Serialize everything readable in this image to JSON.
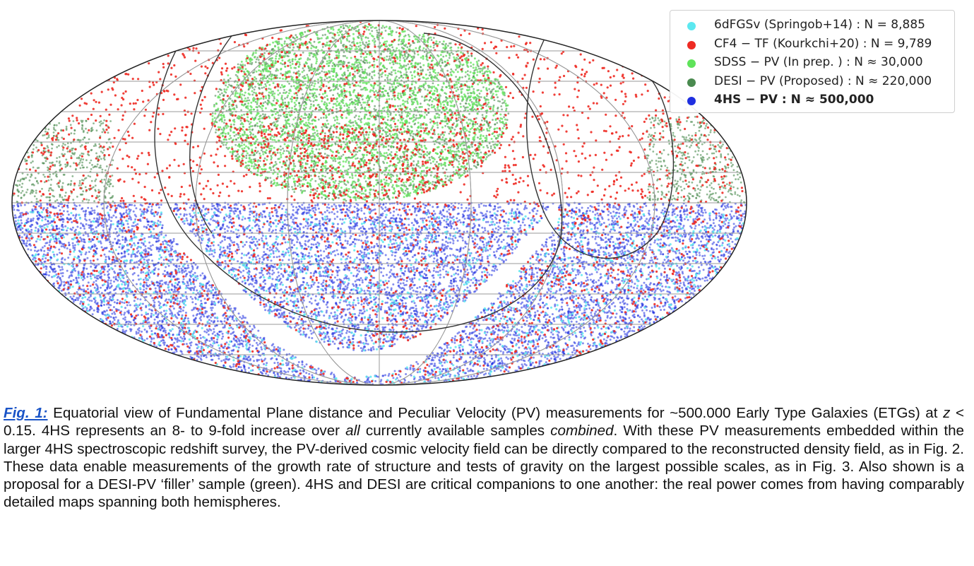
{
  "legend": [
    {
      "label": "6dFGSv (Springob+14) : N = 8,885",
      "color": "#5ce8f0",
      "bold": false
    },
    {
      "label": "CF4 − TF (Kourkchi+20) : N = 9,789",
      "color": "#ee2b23",
      "bold": false
    },
    {
      "label": "SDSS − PV (In prep. ) : N ≈ 30,000",
      "color": "#5fe35a",
      "bold": false
    },
    {
      "label": "DESI − PV (Proposed) : N ≈ 220,000",
      "color": "#4a8a4f",
      "bold": false
    },
    {
      "label": "4HS − PV : N ≈ 500,000",
      "color": "#1f2fe0",
      "bold": true
    }
  ],
  "caption": {
    "label": "Fig. 1:",
    "part1": " Equatorial view of Fundamental Plane distance and Peculiar Velocity (PV) measurements for ~500.000 Early Type Galaxies (ETGs) at ",
    "z": "z",
    "part2": " < 0.15. 4HS represents an 8- to 9-fold increase over ",
    "all": "all",
    "part3": " currently available samples ",
    "combined": "combined",
    "part4": ". With these PV measurements embedded within the larger 4HS spectroscopic redshift survey, the PV-derived cosmic velocity field can be directly compared to the reconstructed density field, as in Fig. 2. These data enable measurements of the growth rate of structure and tests of gravity on the largest possible scales, as in Fig. 3. Also shown is a proposal for a DESI-PV ‘filler’ sample (green). 4HS and DESI are critical companions to one another: the real power comes from having comparably detailed maps spanning both hemispheres."
  },
  "chart_data": {
    "type": "scatter",
    "projection": "mollweide (equatorial)",
    "grid": true,
    "legend_position": "top-right",
    "series": [
      {
        "name": "6dFGSv (Springob+14)",
        "N": 8885,
        "region": "southern sky"
      },
      {
        "name": "CF4 − TF (Kourkchi+20)",
        "N": 9789,
        "region": "all sky"
      },
      {
        "name": "SDSS − PV (In prep. )",
        "N": 30000,
        "region": "northern cap"
      },
      {
        "name": "DESI − PV (Proposed)",
        "N": 220000,
        "region": "northern sky"
      },
      {
        "name": "4HS − PV",
        "N": 500000,
        "region": "southern sky (dec < 0)"
      }
    ]
  }
}
